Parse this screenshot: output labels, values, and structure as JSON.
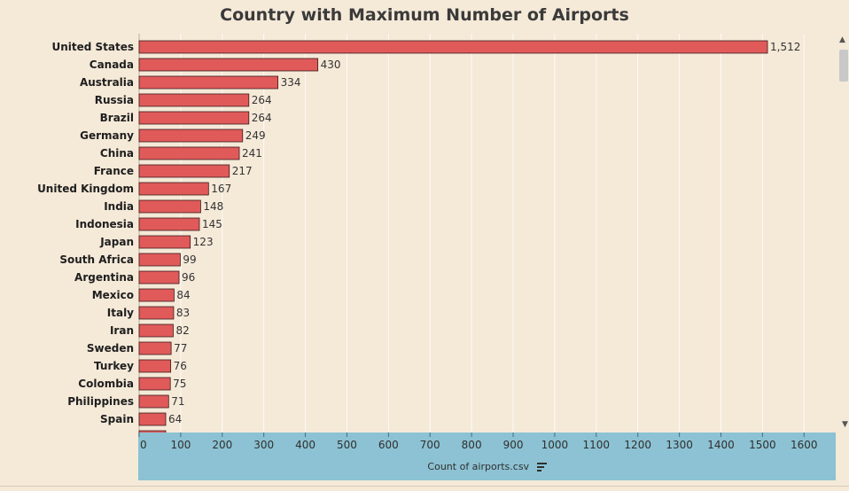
{
  "chart_data": {
    "type": "bar",
    "orientation": "horizontal",
    "title": "Country with Maximum Number of Airports",
    "xlabel": "Count of airports.csv",
    "ylabel": "",
    "xlim": [
      0,
      1600
    ],
    "ticks": [
      0,
      100,
      200,
      300,
      400,
      500,
      600,
      700,
      800,
      900,
      1000,
      1100,
      1200,
      1300,
      1400,
      1500,
      1600
    ],
    "grid": true,
    "bar_color": "#e05a5a",
    "categories": [
      "United States",
      "Canada",
      "Australia",
      "Russia",
      "Brazil",
      "Germany",
      "China",
      "France",
      "United Kingdom",
      "India",
      "Indonesia",
      "Japan",
      "South Africa",
      "Argentina",
      "Mexico",
      "Italy",
      "Iran",
      "Sweden",
      "Turkey",
      "Colombia",
      "Philippines",
      "Spain"
    ],
    "values": [
      1512,
      430,
      334,
      264,
      264,
      249,
      241,
      217,
      167,
      148,
      145,
      123,
      99,
      96,
      84,
      83,
      82,
      77,
      76,
      75,
      71,
      64
    ],
    "value_labels": [
      "1,512",
      "430",
      "334",
      "264",
      "264",
      "249",
      "241",
      "217",
      "167",
      "148",
      "145",
      "123",
      "99",
      "96",
      "84",
      "83",
      "82",
      "77",
      "76",
      "75",
      "71",
      "64"
    ]
  },
  "ui": {
    "scroll_up_icon": "chevron-up-icon",
    "scroll_down_icon": "chevron-down-icon",
    "sort_icon": "sort-descending-icon"
  }
}
